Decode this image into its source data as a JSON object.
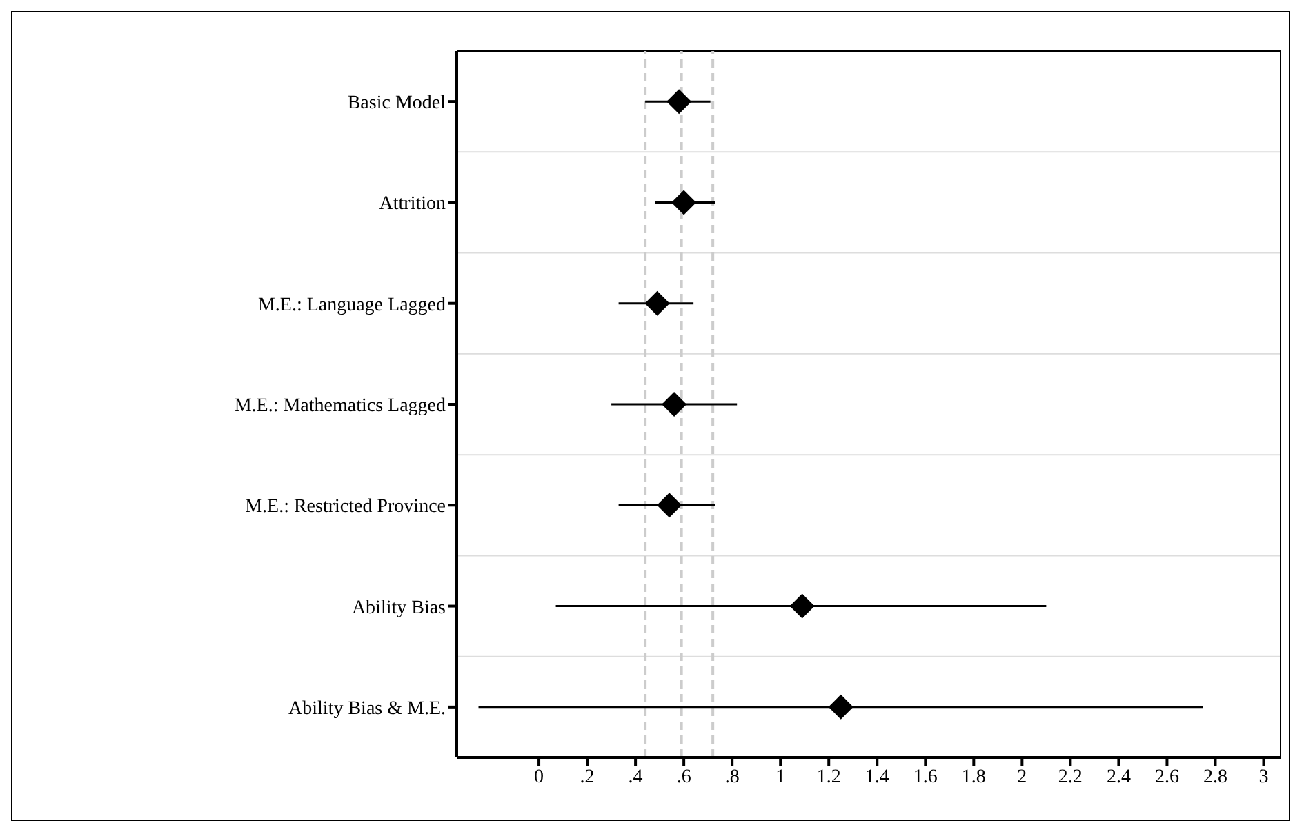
{
  "chart_data": {
    "type": "scatter",
    "orientation": "horizontal",
    "categories": [
      "Basic Model",
      "Attrition",
      "M.E.: Language Lagged",
      "M.E.: Mathematics Lagged",
      "M.E.: Restricted Province",
      "Ability Bias",
      "Ability Bias & M.E."
    ],
    "values": [
      0.58,
      0.6,
      0.49,
      0.56,
      0.54,
      1.09,
      1.25
    ],
    "errors": [
      [
        0.44,
        0.71
      ],
      [
        0.48,
        0.73
      ],
      [
        0.33,
        0.64
      ],
      [
        0.3,
        0.82
      ],
      [
        0.33,
        0.73
      ],
      [
        0.07,
        2.1
      ],
      [
        -0.25,
        2.75
      ]
    ],
    "color": "#000000",
    "marker": "diamond",
    "xlim": [
      -0.34,
      3.07
    ],
    "xticks": [
      0,
      {
        "value": 0.2,
        "label": ".2"
      },
      {
        "value": 0.4,
        "label": ".4"
      },
      {
        "value": 0.6,
        "label": ".6"
      },
      {
        "value": 0.8,
        "label": ".8"
      },
      1,
      1.2,
      1.4,
      1.6,
      1.8,
      2,
      2.2,
      2.4,
      2.6,
      2.8,
      3
    ],
    "ref_lines": [
      {
        "axis": "x",
        "value": 0.44,
        "color": "#cccccc",
        "line_style": "dashed"
      },
      {
        "axis": "x",
        "value": 0.59,
        "color": "#cccccc",
        "line_style": "dashed"
      },
      {
        "axis": "x",
        "value": 0.72,
        "color": "#cccccc",
        "line_style": "dashed"
      }
    ],
    "grid": "y"
  }
}
